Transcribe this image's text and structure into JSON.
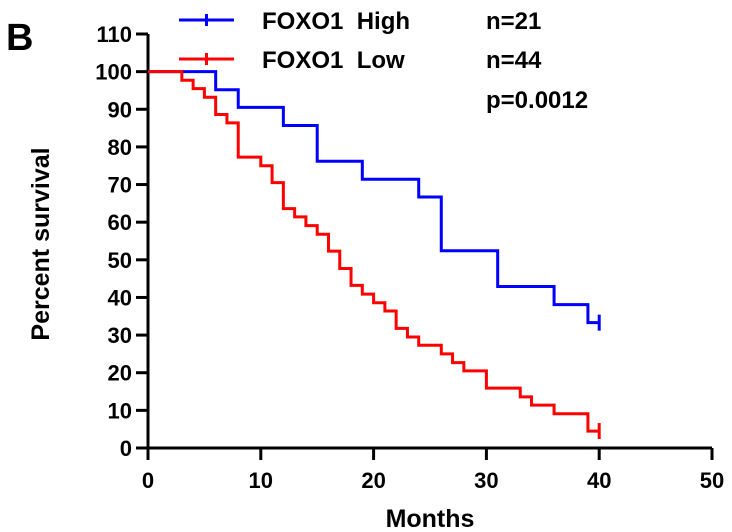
{
  "panel_label": "B",
  "chart_data": {
    "type": "line",
    "xlabel": "Months",
    "ylabel": "Percent survival",
    "xlim": [
      0,
      50
    ],
    "ylim": [
      0,
      110
    ],
    "x_ticks": [
      0,
      10,
      20,
      30,
      40,
      50
    ],
    "y_ticks": [
      0,
      10,
      20,
      30,
      40,
      50,
      60,
      70,
      80,
      90,
      100,
      110
    ],
    "grid": false,
    "legend_position": "top",
    "series": [
      {
        "name": "FOXO1  High",
        "n_label": "n=21",
        "color": "#0000ff",
        "steps": [
          [
            0,
            100
          ],
          [
            6,
            95.2
          ],
          [
            8,
            90.5
          ],
          [
            12,
            85.7
          ],
          [
            15,
            76.2
          ],
          [
            19,
            71.4
          ],
          [
            24,
            66.7
          ],
          [
            26,
            52.4
          ],
          [
            31,
            42.9
          ],
          [
            36,
            38.1
          ],
          [
            39,
            33.3
          ],
          [
            40,
            33.3
          ]
        ],
        "censor_x": [
          40
        ]
      },
      {
        "name": "FOXO1  Low",
        "n_label": "n=44",
        "color": "#ff0000",
        "steps": [
          [
            0,
            100
          ],
          [
            3,
            97.7
          ],
          [
            4,
            95.5
          ],
          [
            5,
            93.2
          ],
          [
            6,
            88.6
          ],
          [
            7,
            86.4
          ],
          [
            8,
            77.3
          ],
          [
            10,
            75
          ],
          [
            11,
            70.5
          ],
          [
            12,
            63.6
          ],
          [
            13,
            61.4
          ],
          [
            14,
            59.1
          ],
          [
            15,
            56.8
          ],
          [
            16,
            52.3
          ],
          [
            17,
            47.7
          ],
          [
            18,
            43.2
          ],
          [
            19,
            40.9
          ],
          [
            20,
            38.6
          ],
          [
            21,
            36.4
          ],
          [
            22,
            31.8
          ],
          [
            23,
            29.5
          ],
          [
            24,
            27.3
          ],
          [
            26,
            25
          ],
          [
            27,
            22.7
          ],
          [
            28,
            20.5
          ],
          [
            30,
            15.9
          ],
          [
            33,
            13.6
          ],
          [
            34,
            11.4
          ],
          [
            36,
            9.1
          ],
          [
            39,
            4.5
          ],
          [
            40,
            4.5
          ]
        ],
        "censor_x": [
          40
        ]
      }
    ],
    "annotations": [
      "p=0.0012"
    ]
  }
}
